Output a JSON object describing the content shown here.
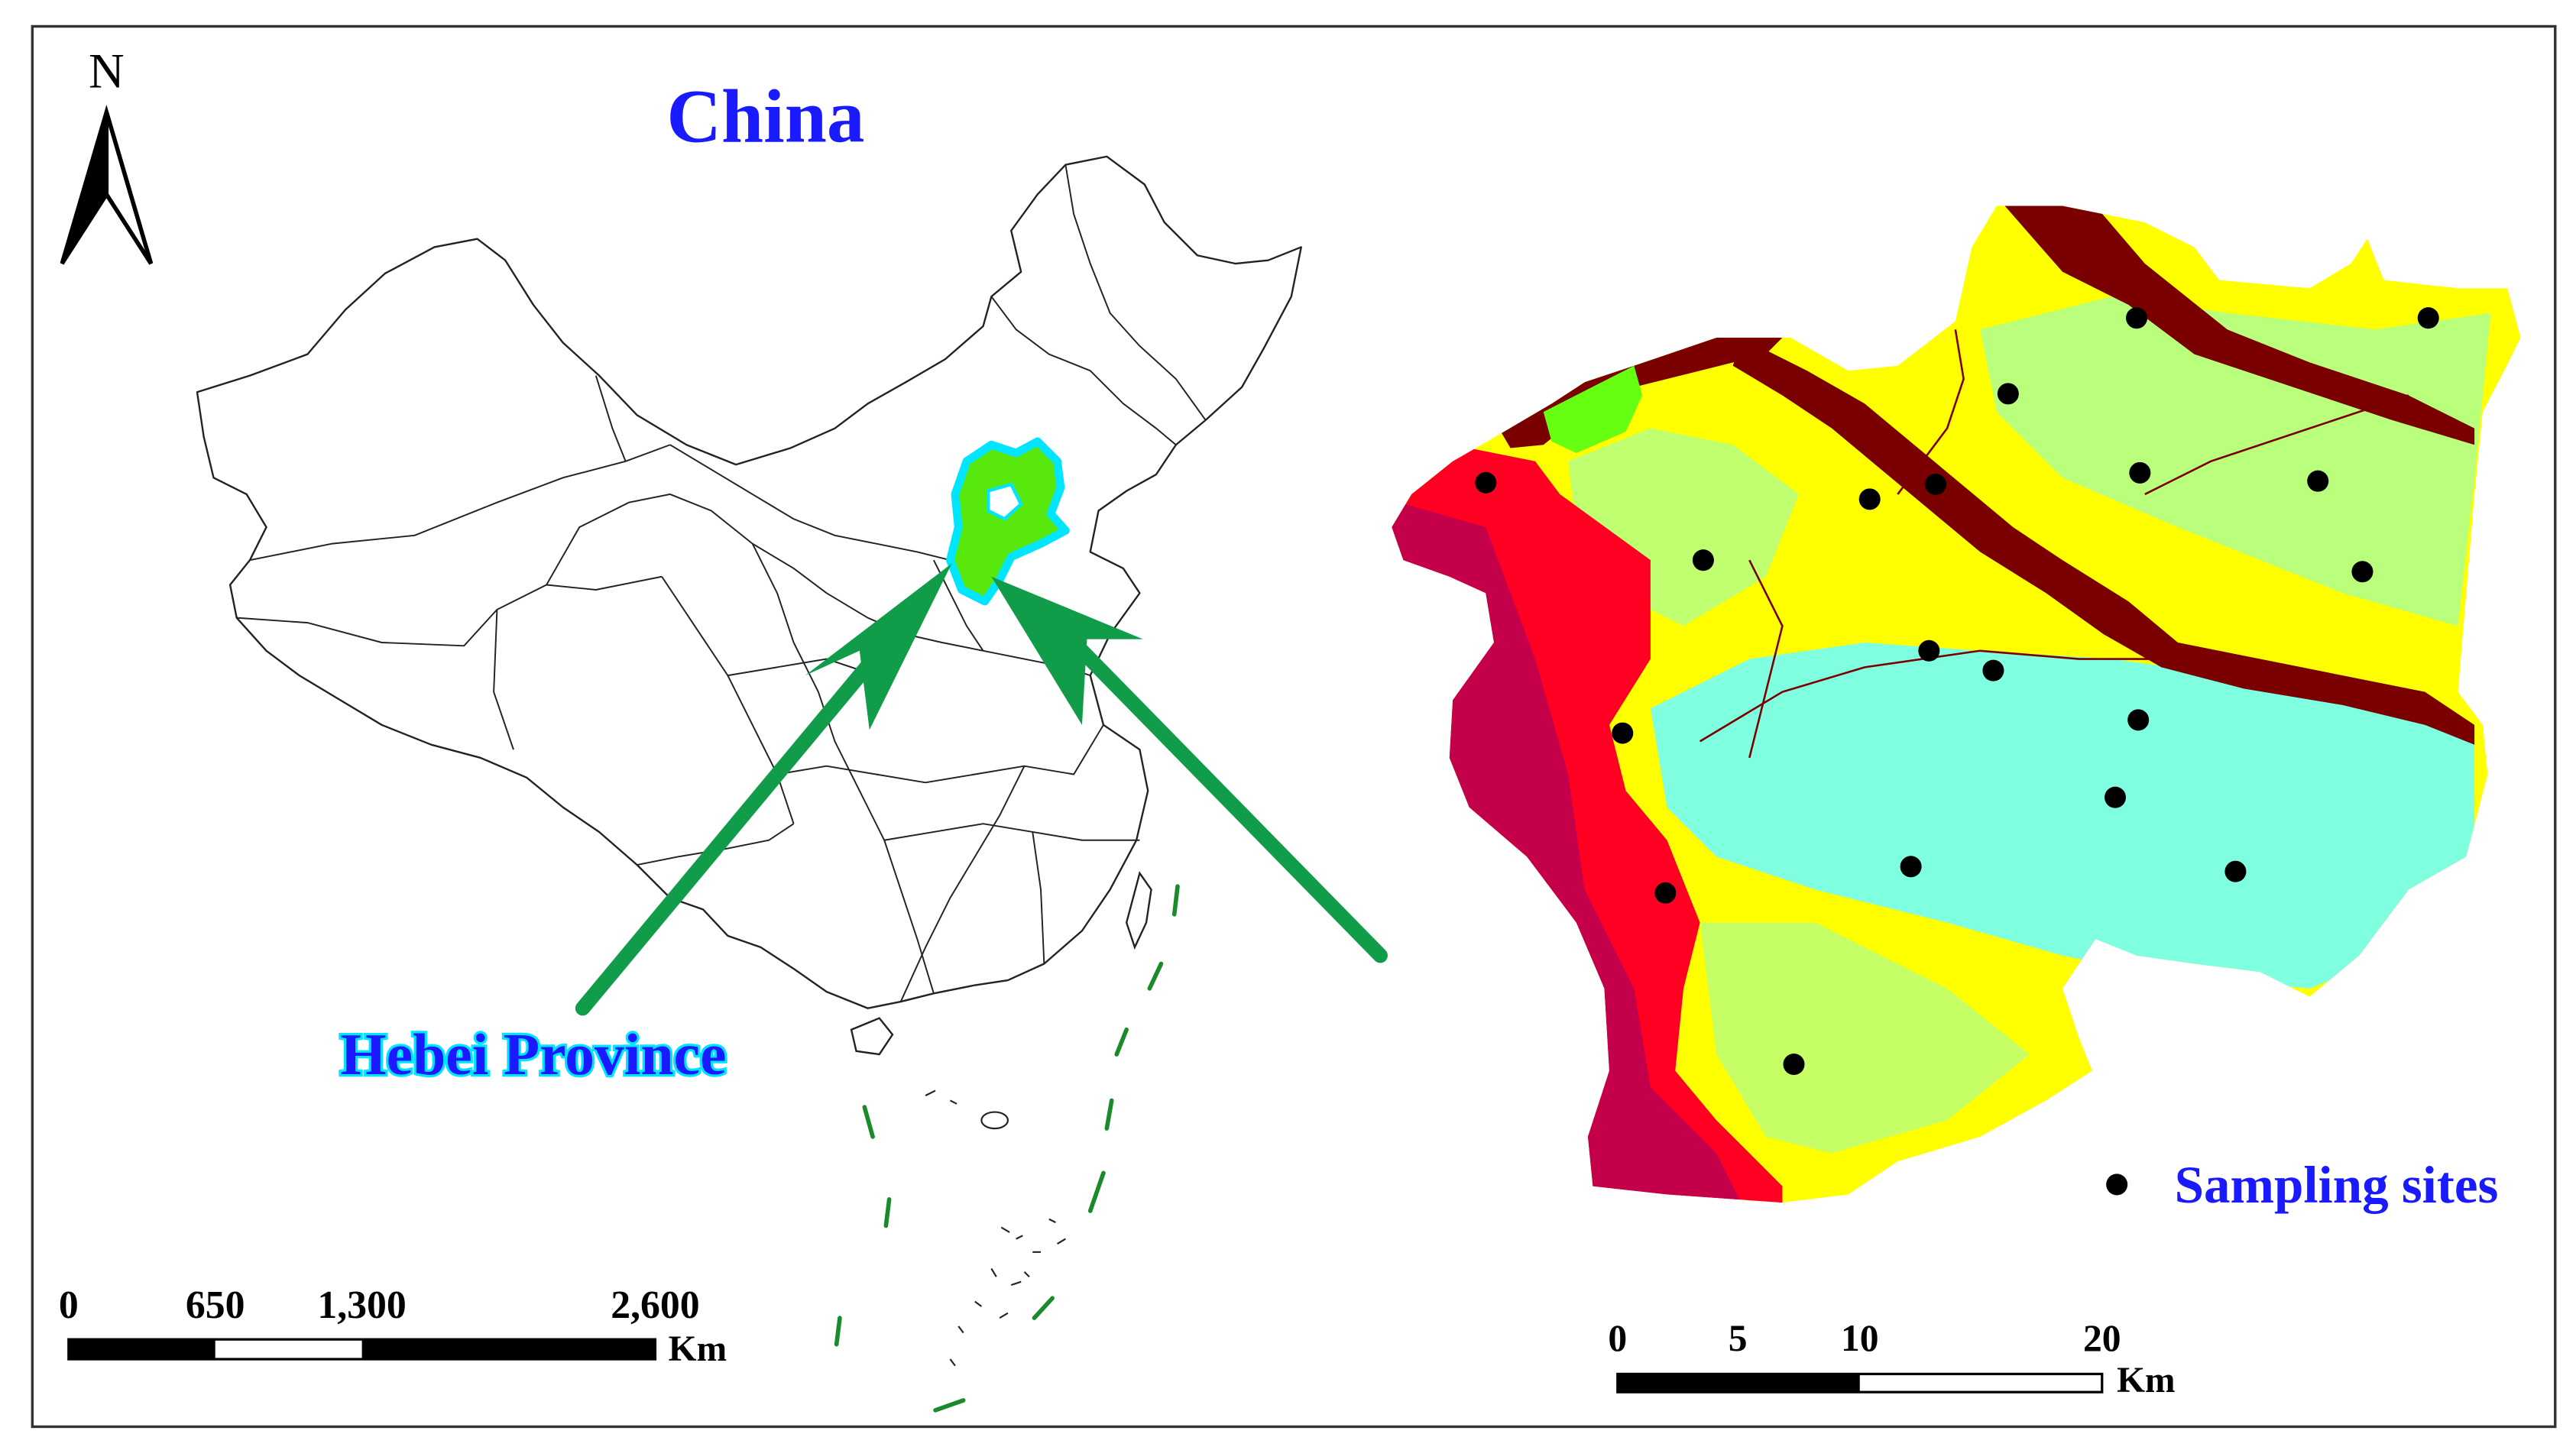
{
  "left_panel": {
    "title": "China",
    "north_label": "N",
    "highlight_label": "Hebei Province",
    "scale": {
      "ticks": [
        "0",
        "650",
        "1,300",
        "2,600"
      ],
      "unit": "Km"
    }
  },
  "right_panel": {
    "legend": {
      "label": "Sampling sites"
    },
    "scale": {
      "ticks": [
        "0",
        "5",
        "10",
        "20"
      ],
      "unit": "Km"
    }
  },
  "colors": {
    "title_blue": "#1a1aff",
    "province_highlight": "#58e80c",
    "province_outline": "#00e5ff",
    "arrow_green": "#119c4a",
    "land_yellow": "#ffff00",
    "land_cyan": "#7fffe0",
    "land_red": "#ff0022",
    "land_crimson": "#c4004a",
    "land_maroon": "#7a0000",
    "land_green": "#66ff11",
    "site_dot": "#000000"
  },
  "icons": {
    "north_arrow": "north-arrow-icon",
    "site_marker": "dot-icon"
  }
}
